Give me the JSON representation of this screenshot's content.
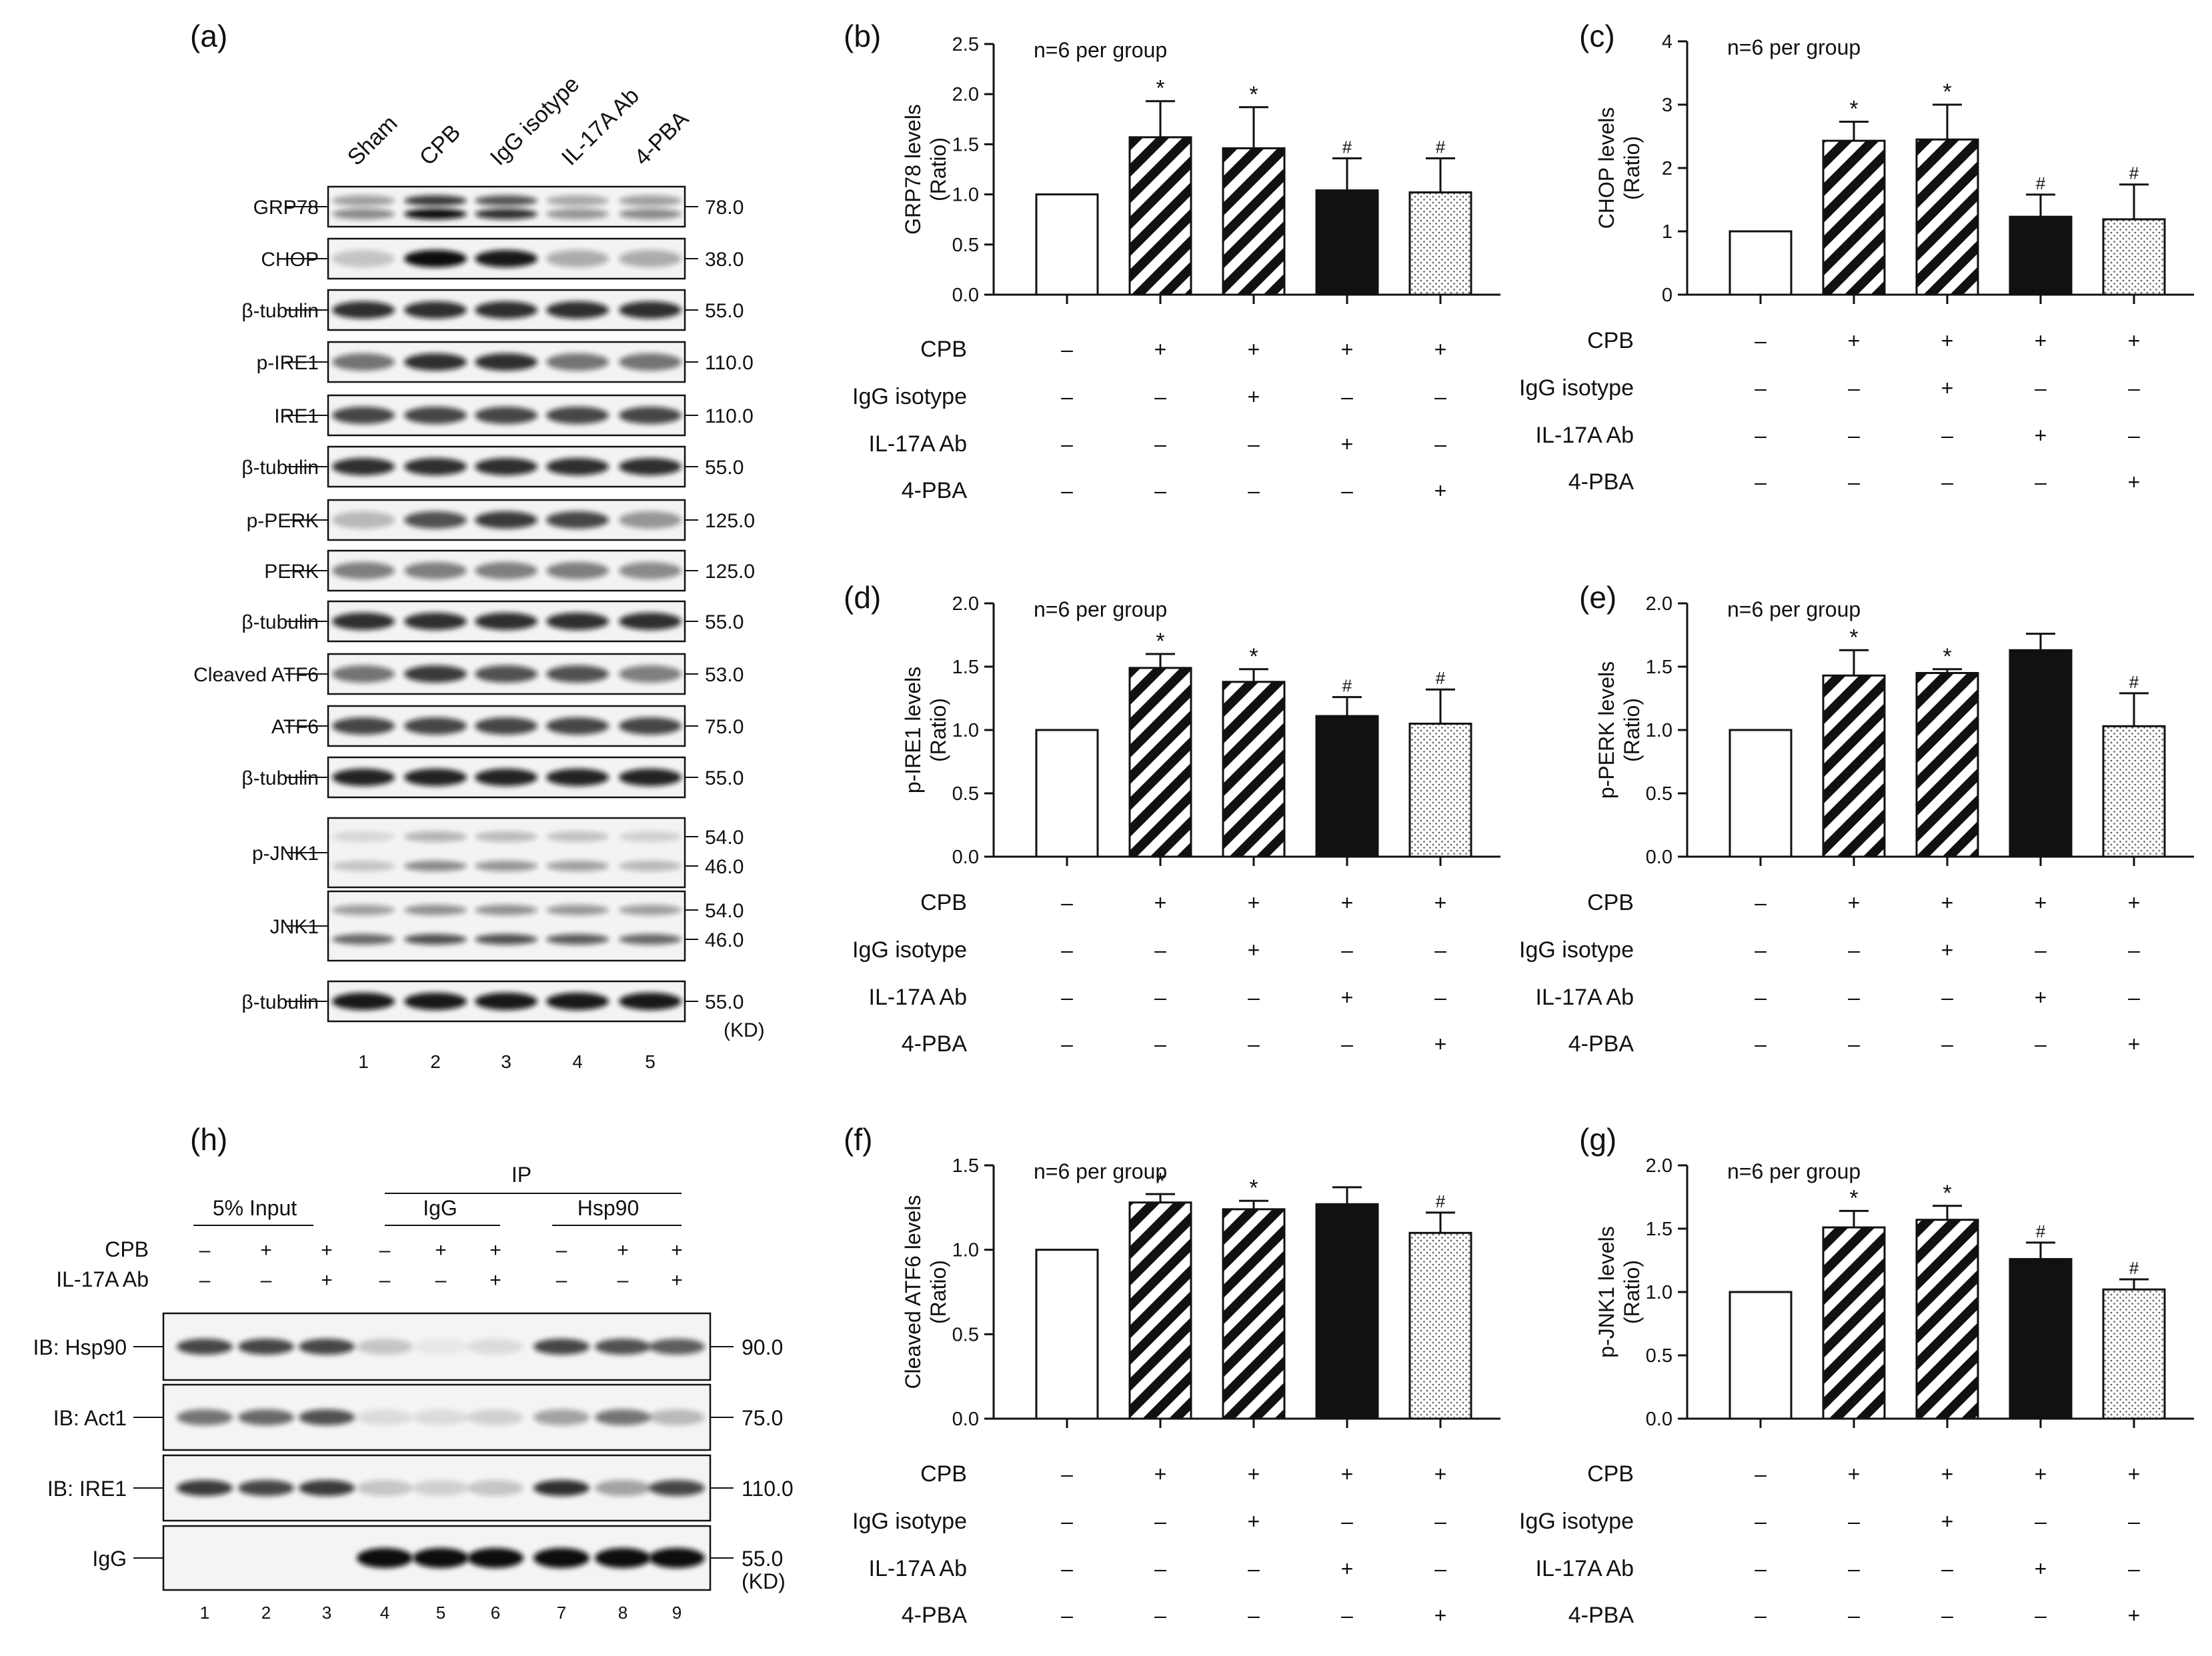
{
  "panels": {
    "a": "(a)",
    "b": "(b)",
    "c": "(c)",
    "d": "(d)",
    "e": "(e)",
    "f": "(f)",
    "g": "(g)",
    "h": "(h)"
  },
  "blot_a": {
    "lanes": [
      "Sham",
      "CPB",
      "IgG isotype",
      "IL-17A Ab",
      "4-PBA"
    ],
    "lane_numbers": [
      "1",
      "2",
      "3",
      "4",
      "5"
    ],
    "kd_unit": "(KD)",
    "rows": [
      {
        "label": "GRP78",
        "kd": [
          "78.0"
        ],
        "bands": [
          0.45,
          1.0,
          0.85,
          0.4,
          0.45
        ],
        "double": true
      },
      {
        "label": "CHOP",
        "kd": [
          "38.0"
        ],
        "bands": [
          0.2,
          1.0,
          0.95,
          0.3,
          0.3
        ],
        "double": false
      },
      {
        "label": "β-tubulin",
        "kd": [
          "55.0"
        ],
        "bands": [
          0.85,
          0.85,
          0.85,
          0.85,
          0.85
        ],
        "double": false
      },
      {
        "label": "p-IRE1",
        "kd": [
          "110.0"
        ],
        "bands": [
          0.55,
          0.85,
          0.85,
          0.55,
          0.55
        ],
        "double": false
      },
      {
        "label": "IRE1",
        "kd": [
          "110.0"
        ],
        "bands": [
          0.75,
          0.75,
          0.75,
          0.75,
          0.75
        ],
        "double": false
      },
      {
        "label": "β-tubulin",
        "kd": [
          "55.0"
        ],
        "bands": [
          0.85,
          0.85,
          0.85,
          0.85,
          0.85
        ],
        "double": false
      },
      {
        "label": "p-PERK",
        "kd": [
          "125.0"
        ],
        "bands": [
          0.25,
          0.7,
          0.8,
          0.75,
          0.4
        ],
        "double": false
      },
      {
        "label": "PERK",
        "kd": [
          "125.0"
        ],
        "bands": [
          0.5,
          0.5,
          0.5,
          0.5,
          0.45
        ],
        "double": false
      },
      {
        "label": "β-tubulin",
        "kd": [
          "55.0"
        ],
        "bands": [
          0.85,
          0.85,
          0.85,
          0.85,
          0.85
        ],
        "double": false
      },
      {
        "label": "Cleaved ATF6",
        "kd": [
          "53.0"
        ],
        "bands": [
          0.55,
          0.8,
          0.7,
          0.7,
          0.5
        ],
        "double": false
      },
      {
        "label": "ATF6",
        "kd": [
          "75.0"
        ],
        "bands": [
          0.75,
          0.75,
          0.75,
          0.75,
          0.75
        ],
        "double": false
      },
      {
        "label": "β-tubulin",
        "kd": [
          "55.0"
        ],
        "bands": [
          0.9,
          0.9,
          0.9,
          0.9,
          0.9
        ],
        "double": false
      },
      {
        "label": "p-JNK1",
        "kd": [
          "54.0",
          "46.0"
        ],
        "bands": [
          0.2,
          0.45,
          0.4,
          0.35,
          0.25
        ],
        "double": true
      },
      {
        "label": "JNK1",
        "kd": [
          "54.0",
          "46.0"
        ],
        "bands": [
          0.6,
          0.7,
          0.7,
          0.65,
          0.6
        ],
        "double": true
      },
      {
        "label": "β-tubulin",
        "kd": [
          "55.0"
        ],
        "bands": [
          0.95,
          0.95,
          0.95,
          0.95,
          0.95
        ],
        "double": false
      }
    ]
  },
  "blot_h": {
    "input_label": "5% Input",
    "ip_label": "IP",
    "igg_label": "IgG",
    "hsp90_label": "Hsp90",
    "cond_labels": [
      "CPB",
      "IL-17A Ab"
    ],
    "cond_signs": [
      [
        "–",
        "+",
        "+",
        "–",
        "+",
        "+",
        "–",
        "+",
        "+"
      ],
      [
        "–",
        "–",
        "+",
        "–",
        "–",
        "+",
        "–",
        "–",
        "+"
      ]
    ],
    "lane_numbers": [
      "1",
      "2",
      "3",
      "4",
      "5",
      "6",
      "7",
      "8",
      "9"
    ],
    "kd_unit": "(KD)",
    "rows": [
      {
        "label": "IB: Hsp90",
        "kd": "90.0",
        "bands": [
          0.75,
          0.75,
          0.75,
          0.2,
          0.05,
          0.1,
          0.75,
          0.7,
          0.65
        ]
      },
      {
        "label": "IB: Act1",
        "kd": "75.0",
        "bands": [
          0.55,
          0.6,
          0.7,
          0.1,
          0.1,
          0.15,
          0.35,
          0.55,
          0.25
        ]
      },
      {
        "label": "IB: IRE1",
        "kd": "110.0",
        "bands": [
          0.8,
          0.75,
          0.8,
          0.2,
          0.15,
          0.2,
          0.85,
          0.35,
          0.75
        ]
      },
      {
        "label": "IgG",
        "kd": "55.0",
        "bands": [
          0.0,
          0.0,
          0.0,
          1.0,
          1.0,
          1.0,
          1.0,
          1.0,
          1.0
        ]
      }
    ]
  },
  "chart_data": [
    {
      "panel": "b",
      "type": "bar",
      "title": "n=6 per group",
      "ylabel": "GRP78 levels\n(Ratio)",
      "ylim": [
        0,
        2.5
      ],
      "yticks": [
        "0.0",
        "0.5",
        "1.0",
        "1.5",
        "2.0",
        "2.5"
      ],
      "categories": [
        "Sham",
        "CPB",
        "IgG isotype",
        "IL-17A Ab",
        "4-PBA"
      ],
      "values": [
        1.0,
        1.57,
        1.46,
        1.04,
        1.02
      ],
      "errors": [
        0,
        0.36,
        0.41,
        0.32,
        0.34
      ],
      "marks": [
        "",
        "*",
        "*",
        "#",
        "#"
      ],
      "table": {
        "rows": [
          "CPB",
          "IgG isotype",
          "IL-17A Ab",
          "4-PBA"
        ],
        "signs": [
          [
            "–",
            "+",
            "+",
            "+",
            "+"
          ],
          [
            "–",
            "–",
            "+",
            "–",
            "–"
          ],
          [
            "–",
            "–",
            "–",
            "+",
            "–"
          ],
          [
            "–",
            "–",
            "–",
            "–",
            "+"
          ]
        ]
      }
    },
    {
      "panel": "c",
      "type": "bar",
      "title": "n=6 per group",
      "ylabel": "CHOP levels\n(Ratio)",
      "ylim": [
        0,
        4
      ],
      "yticks": [
        "0",
        "1",
        "2",
        "3",
        "4"
      ],
      "categories": [
        "Sham",
        "CPB",
        "IgG isotype",
        "IL-17A Ab",
        "4-PBA"
      ],
      "values": [
        1.0,
        2.43,
        2.45,
        1.23,
        1.19
      ],
      "errors": [
        0,
        0.3,
        0.55,
        0.35,
        0.55
      ],
      "marks": [
        "",
        "*",
        "*",
        "#",
        "#"
      ],
      "table": {
        "rows": [
          "CPB",
          "IgG isotype",
          "IL-17A Ab",
          "4-PBA"
        ],
        "signs": [
          [
            "–",
            "+",
            "+",
            "+",
            "+"
          ],
          [
            "–",
            "–",
            "+",
            "–",
            "–"
          ],
          [
            "–",
            "–",
            "–",
            "+",
            "–"
          ],
          [
            "–",
            "–",
            "–",
            "–",
            "+"
          ]
        ]
      }
    },
    {
      "panel": "d",
      "type": "bar",
      "title": "n=6 per group",
      "ylabel": "p-IRE1 levels\n(Ratio)",
      "ylim": [
        0,
        2.0
      ],
      "yticks": [
        "0.0",
        "0.5",
        "1.0",
        "1.5",
        "2.0"
      ],
      "categories": [
        "Sham",
        "CPB",
        "IgG isotype",
        "IL-17A Ab",
        "4-PBA"
      ],
      "values": [
        1.0,
        1.49,
        1.38,
        1.11,
        1.05
      ],
      "errors": [
        0,
        0.11,
        0.1,
        0.15,
        0.27
      ],
      "marks": [
        "",
        "*",
        "*",
        "#",
        "#"
      ],
      "table": {
        "rows": [
          "CPB",
          "IgG isotype",
          "IL-17A Ab",
          "4-PBA"
        ],
        "signs": [
          [
            "–",
            "+",
            "+",
            "+",
            "+"
          ],
          [
            "–",
            "–",
            "+",
            "–",
            "–"
          ],
          [
            "–",
            "–",
            "–",
            "+",
            "–"
          ],
          [
            "–",
            "–",
            "–",
            "–",
            "+"
          ]
        ]
      }
    },
    {
      "panel": "e",
      "type": "bar",
      "title": "n=6 per group",
      "ylabel": "p-PERK levels\n(Ratio)",
      "ylim": [
        0,
        2.0
      ],
      "yticks": [
        "0.0",
        "0.5",
        "1.0",
        "1.5",
        "2.0"
      ],
      "categories": [
        "Sham",
        "CPB",
        "IgG isotype",
        "IL-17A Ab",
        "4-PBA"
      ],
      "values": [
        1.0,
        1.43,
        1.45,
        1.63,
        1.03
      ],
      "errors": [
        0,
        0.2,
        0.03,
        0.13,
        0.26
      ],
      "marks": [
        "",
        "*",
        "*",
        "",
        "#"
      ],
      "table": {
        "rows": [
          "CPB",
          "IgG isotype",
          "IL-17A Ab",
          "4-PBA"
        ],
        "signs": [
          [
            "–",
            "+",
            "+",
            "+",
            "+"
          ],
          [
            "–",
            "–",
            "+",
            "–",
            "–"
          ],
          [
            "–",
            "–",
            "–",
            "+",
            "–"
          ],
          [
            "–",
            "–",
            "–",
            "–",
            "+"
          ]
        ]
      }
    },
    {
      "panel": "f",
      "type": "bar",
      "title": "n=6 per group",
      "ylabel": "Cleaved ATF6 levels\n(Ratio)",
      "ylim": [
        0,
        1.5
      ],
      "yticks": [
        "0.0",
        "0.5",
        "1.0",
        "1.5"
      ],
      "categories": [
        "Sham",
        "CPB",
        "IgG isotype",
        "IL-17A Ab",
        "4-PBA"
      ],
      "values": [
        1.0,
        1.28,
        1.24,
        1.27,
        1.1
      ],
      "errors": [
        0,
        0.05,
        0.05,
        0.1,
        0.12
      ],
      "marks": [
        "",
        "*",
        "*",
        "",
        "#"
      ],
      "table": {
        "rows": [
          "CPB",
          "IgG isotype",
          "IL-17A Ab",
          "4-PBA"
        ],
        "signs": [
          [
            "–",
            "+",
            "+",
            "+",
            "+"
          ],
          [
            "–",
            "–",
            "+",
            "–",
            "–"
          ],
          [
            "–",
            "–",
            "–",
            "+",
            "–"
          ],
          [
            "–",
            "–",
            "–",
            "–",
            "+"
          ]
        ]
      }
    },
    {
      "panel": "g",
      "type": "bar",
      "title": "n=6 per group",
      "ylabel": "p-JNK1 levels\n(Ratio)",
      "ylim": [
        0,
        2.0
      ],
      "yticks": [
        "0.0",
        "0.5",
        "1.0",
        "1.5",
        "2.0"
      ],
      "categories": [
        "Sham",
        "CPB",
        "IgG isotype",
        "IL-17A Ab",
        "4-PBA"
      ],
      "values": [
        1.0,
        1.51,
        1.57,
        1.26,
        1.02
      ],
      "errors": [
        0,
        0.13,
        0.11,
        0.13,
        0.08
      ],
      "marks": [
        "",
        "*",
        "*",
        "#",
        "#"
      ],
      "table": {
        "rows": [
          "CPB",
          "IgG isotype",
          "IL-17A Ab",
          "4-PBA"
        ],
        "signs": [
          [
            "–",
            "+",
            "+",
            "+",
            "+"
          ],
          [
            "–",
            "–",
            "+",
            "–",
            "–"
          ],
          [
            "–",
            "–",
            "–",
            "+",
            "–"
          ],
          [
            "–",
            "–",
            "–",
            "–",
            "+"
          ]
        ]
      }
    }
  ]
}
